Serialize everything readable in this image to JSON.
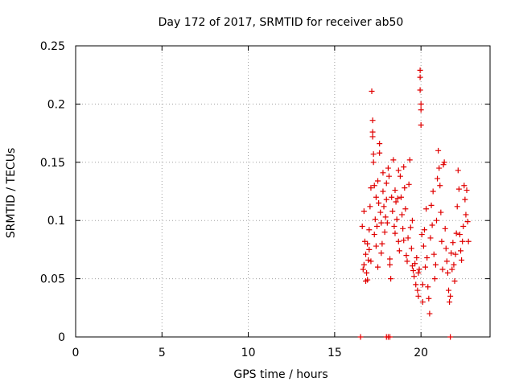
{
  "chart_data": {
    "type": "scatter",
    "title": "Day 172 of 2017, SRMTID for receiver ab50",
    "xlabel": "GPS time / hours",
    "ylabel": "SRMTID / TECUs",
    "xlim": [
      0,
      24
    ],
    "ylim": [
      0,
      0.25
    ],
    "xticks": [
      0,
      5,
      10,
      15,
      20
    ],
    "xtick_labels": [
      "0",
      "5",
      "10",
      "15",
      "20"
    ],
    "yticks": [
      0,
      0.05,
      0.1,
      0.15,
      0.2,
      0.25
    ],
    "ytick_labels": [
      "0",
      "0.05",
      "0.1",
      "0.15",
      "0.2",
      "0.25"
    ],
    "grid": true,
    "marker": "+",
    "series_color": "#e00000",
    "series": [
      {
        "name": "SRMTID",
        "points": [
          [
            16.5,
            0
          ],
          [
            18.0,
            0
          ],
          [
            18.1,
            0
          ],
          [
            18.2,
            0
          ],
          [
            21.7,
            0
          ],
          [
            16.6,
            0.095
          ],
          [
            16.65,
            0.058
          ],
          [
            16.7,
            0.108
          ],
          [
            16.75,
            0.082
          ],
          [
            16.8,
            0.071
          ],
          [
            16.85,
            0.055
          ],
          [
            16.9,
            0.049
          ],
          [
            16.95,
            0.066
          ],
          [
            17.0,
            0.075
          ],
          [
            17.0,
            0.092
          ],
          [
            16.7,
            0.062
          ],
          [
            16.8,
            0.048
          ],
          [
            16.9,
            0.08
          ],
          [
            17.05,
            0.112
          ],
          [
            17.1,
            0.128
          ],
          [
            17.1,
            0.065
          ],
          [
            17.15,
            0.211
          ],
          [
            17.2,
            0.176
          ],
          [
            17.2,
            0.186
          ],
          [
            17.2,
            0.172
          ],
          [
            17.25,
            0.157
          ],
          [
            17.25,
            0.15
          ],
          [
            17.3,
            0.13
          ],
          [
            17.3,
            0.088
          ],
          [
            17.35,
            0.101
          ],
          [
            17.4,
            0.12
          ],
          [
            17.4,
            0.078
          ],
          [
            17.45,
            0.095
          ],
          [
            17.5,
            0.134
          ],
          [
            17.5,
            0.06
          ],
          [
            17.55,
            0.115
          ],
          [
            17.6,
            0.166
          ],
          [
            17.6,
            0.158
          ],
          [
            17.65,
            0.107
          ],
          [
            17.7,
            0.072
          ],
          [
            17.7,
            0.098
          ],
          [
            17.75,
            0.08
          ],
          [
            17.8,
            0.141
          ],
          [
            17.8,
            0.125
          ],
          [
            17.85,
            0.112
          ],
          [
            17.9,
            0.09
          ],
          [
            17.95,
            0.103
          ],
          [
            18.0,
            0.132
          ],
          [
            18.0,
            0.118
          ],
          [
            18.05,
            0.098
          ],
          [
            18.1,
            0.145
          ],
          [
            18.15,
            0.138
          ],
          [
            18.2,
            0.062
          ],
          [
            18.2,
            0.067
          ],
          [
            18.25,
            0.05
          ],
          [
            18.3,
            0.12
          ],
          [
            18.35,
            0.108
          ],
          [
            18.4,
            0.152
          ],
          [
            18.45,
            0.095
          ],
          [
            18.5,
            0.089
          ],
          [
            18.5,
            0.126
          ],
          [
            18.55,
            0.116
          ],
          [
            18.6,
            0.101
          ],
          [
            18.65,
            0.119
          ],
          [
            18.7,
            0.143
          ],
          [
            18.7,
            0.082
          ],
          [
            18.75,
            0.074
          ],
          [
            18.8,
            0.138
          ],
          [
            18.85,
            0.12
          ],
          [
            18.9,
            0.105
          ],
          [
            18.95,
            0.093
          ],
          [
            19.0,
            0.083
          ],
          [
            19.0,
            0.146
          ],
          [
            19.05,
            0.128
          ],
          [
            19.1,
            0.11
          ],
          [
            19.15,
            0.07
          ],
          [
            19.2,
            0.065
          ],
          [
            19.25,
            0.085
          ],
          [
            19.3,
            0.131
          ],
          [
            19.35,
            0.152
          ],
          [
            19.4,
            0.094
          ],
          [
            19.45,
            0.076
          ],
          [
            19.5,
            0.061
          ],
          [
            19.5,
            0.1
          ],
          [
            19.55,
            0.057
          ],
          [
            19.6,
            0.052
          ],
          [
            19.65,
            0.063
          ],
          [
            19.7,
            0.045
          ],
          [
            19.75,
            0.068
          ],
          [
            19.8,
            0.04
          ],
          [
            19.85,
            0.035
          ],
          [
            19.85,
            0.055
          ],
          [
            19.9,
            0.058
          ],
          [
            19.95,
            0.229
          ],
          [
            19.95,
            0.223
          ],
          [
            19.95,
            0.212
          ],
          [
            20.0,
            0.2
          ],
          [
            20.0,
            0.195
          ],
          [
            20.0,
            0.182
          ],
          [
            20.05,
            0.088
          ],
          [
            20.1,
            0.045
          ],
          [
            20.1,
            0.03
          ],
          [
            20.15,
            0.078
          ],
          [
            20.2,
            0.092
          ],
          [
            20.25,
            0.06
          ],
          [
            20.3,
            0.11
          ],
          [
            20.35,
            0.068
          ],
          [
            20.4,
            0.043
          ],
          [
            20.45,
            0.033
          ],
          [
            20.5,
            0.02
          ],
          [
            20.55,
            0.085
          ],
          [
            20.6,
            0.113
          ],
          [
            20.65,
            0.096
          ],
          [
            20.7,
            0.125
          ],
          [
            20.75,
            0.071
          ],
          [
            20.8,
            0.05
          ],
          [
            20.85,
            0.062
          ],
          [
            20.9,
            0.1
          ],
          [
            20.95,
            0.136
          ],
          [
            21.0,
            0.16
          ],
          [
            21.05,
            0.145
          ],
          [
            21.1,
            0.13
          ],
          [
            21.15,
            0.107
          ],
          [
            21.2,
            0.082
          ],
          [
            21.25,
            0.058
          ],
          [
            21.3,
            0.148
          ],
          [
            21.35,
            0.15
          ],
          [
            21.4,
            0.093
          ],
          [
            21.45,
            0.076
          ],
          [
            21.5,
            0.065
          ],
          [
            21.55,
            0.055
          ],
          [
            21.6,
            0.04
          ],
          [
            21.65,
            0.03
          ],
          [
            21.7,
            0.035
          ],
          [
            21.75,
            0.072
          ],
          [
            21.8,
            0.058
          ],
          [
            21.85,
            0.081
          ],
          [
            21.9,
            0.062
          ],
          [
            21.95,
            0.048
          ],
          [
            22.0,
            0.071
          ],
          [
            22.05,
            0.089
          ],
          [
            22.1,
            0.112
          ],
          [
            22.15,
            0.143
          ],
          [
            22.2,
            0.127
          ],
          [
            22.25,
            0.088
          ],
          [
            22.3,
            0.074
          ],
          [
            22.35,
            0.066
          ],
          [
            22.4,
            0.082
          ],
          [
            22.45,
            0.095
          ],
          [
            22.5,
            0.13
          ],
          [
            22.55,
            0.118
          ],
          [
            22.6,
            0.105
          ],
          [
            22.65,
            0.126
          ],
          [
            22.7,
            0.099
          ],
          [
            22.75,
            0.082
          ]
        ]
      }
    ]
  }
}
